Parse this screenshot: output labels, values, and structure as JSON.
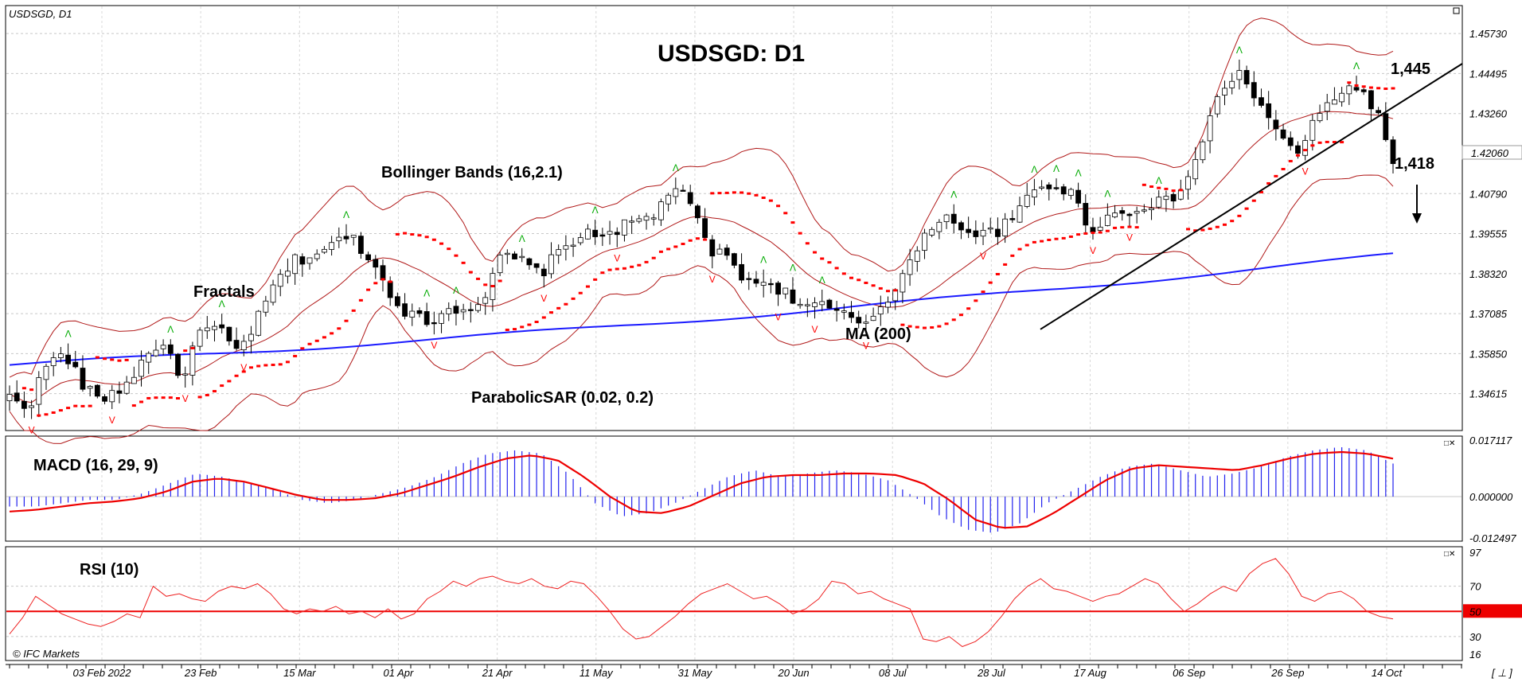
{
  "symbol_label": "USDSGD, D1",
  "title": "USDSGD: D1",
  "copyright": "© IFC Markets",
  "corner_glyph": "[ ⊥ ]",
  "current_price_label": "1.42060",
  "annotations": {
    "bollinger": "Bollinger Bands (16,2.1)",
    "fractals": "Fractals",
    "ma": "MA (200)",
    "parabolic": "ParabolicSAR (0.02, 0.2)",
    "level_high": "1,445",
    "level_low": "1,418"
  },
  "colors": {
    "ma": "#1a1aff",
    "bands": "#b01818",
    "sar": "#ff0000",
    "fractal_up": "#00aa00",
    "fractal_down": "#ff0000",
    "macd_hist": "#2222ee",
    "macd_signal": "#ee0000",
    "rsi": "#ee2222",
    "rsi_mid": "#ee0000"
  },
  "chart_data": [
    {
      "type": "candlestick",
      "panel": "main",
      "y_ticks": [
        "1.45730",
        "1.44495",
        "1.43260",
        "1.40790",
        "1.39555",
        "1.38320",
        "1.37085",
        "1.35850",
        "1.34615"
      ],
      "ylim": [
        1.3355,
        1.4652
      ],
      "x_labels": [
        "03 Feb 2022",
        "23 Feb",
        "15 Mar",
        "01 Apr",
        "21 Apr",
        "11 May",
        "31 May",
        "20 Jun",
        "08 Jul",
        "28 Jul",
        "17 Aug",
        "06 Sep",
        "26 Sep",
        "14 Oct"
      ],
      "close_anchors": [
        1.345,
        1.342,
        1.356,
        1.358,
        1.347,
        1.345,
        1.348,
        1.356,
        1.363,
        1.35,
        1.365,
        1.366,
        1.359,
        1.368,
        1.38,
        1.387,
        1.389,
        1.392,
        1.395,
        1.388,
        1.378,
        1.371,
        1.368,
        1.372,
        1.373,
        1.375,
        1.389,
        1.387,
        1.383,
        1.39,
        1.395,
        1.395,
        1.397,
        1.399,
        1.401,
        1.411,
        1.403,
        1.39,
        1.388,
        1.38,
        1.381,
        1.377,
        1.373,
        1.373,
        1.37,
        1.368,
        1.373,
        1.382,
        1.391,
        1.401,
        1.399,
        1.395,
        1.396,
        1.4,
        1.409,
        1.411,
        1.408,
        1.397,
        1.401,
        1.402,
        1.405,
        1.405,
        1.41,
        1.425,
        1.441,
        1.445,
        1.435,
        1.425,
        1.421,
        1.431,
        1.439,
        1.441,
        1.435,
        1.418
      ],
      "ma200": {
        "name": "MA (200)",
        "start": 1.355,
        "end": 1.389
      },
      "bollinger": {
        "name": "Bollinger Bands (16,2.1)",
        "period": 16,
        "deviation": 2.1
      },
      "parabolic_sar": {
        "name": "ParabolicSAR (0.02, 0.2)",
        "step": 0.02,
        "max": 0.2
      },
      "trendline": {
        "from": 1.366,
        "to": 1.448
      },
      "arrow": "down"
    },
    {
      "type": "macd",
      "panel": "macd",
      "label": "MACD (16, 29, 9)",
      "y_ticks": [
        "0.017117",
        "0.000000",
        "-0.012497"
      ],
      "ylim": [
        -0.0125,
        0.0171
      ],
      "histogram_anchors": [
        -0.003,
        -0.003,
        -0.002,
        -0.001,
        -0.001,
        0.001,
        0.004,
        0.007,
        0.006,
        0.004,
        0.002,
        -0.001,
        -0.002,
        -0.001,
        0.001,
        0.003,
        0.006,
        0.01,
        0.013,
        0.014,
        0.013,
        0.007,
        -0.002,
        -0.006,
        -0.005,
        -0.002,
        0.002,
        0.006,
        0.008,
        0.006,
        0.007,
        0.008,
        0.007,
        0.005,
        0.0,
        -0.006,
        -0.01,
        -0.011,
        -0.008,
        -0.002,
        0.002,
        0.006,
        0.009,
        0.01,
        0.008,
        0.006,
        0.007,
        0.009,
        0.012,
        0.014,
        0.015,
        0.014,
        0.01
      ],
      "signal_anchors": [
        -0.0045,
        -0.004,
        -0.003,
        -0.002,
        -0.0015,
        -0.0005,
        0.0015,
        0.0045,
        0.0055,
        0.0045,
        0.0025,
        0.0005,
        -0.001,
        -0.001,
        -0.0005,
        0.001,
        0.0035,
        0.006,
        0.009,
        0.0115,
        0.0125,
        0.011,
        0.006,
        0.0,
        -0.0045,
        -0.005,
        -0.003,
        0.0005,
        0.004,
        0.006,
        0.0065,
        0.0065,
        0.007,
        0.007,
        0.0065,
        0.004,
        -0.001,
        -0.007,
        -0.0095,
        -0.009,
        -0.005,
        0.0,
        0.005,
        0.0085,
        0.0095,
        0.009,
        0.0085,
        0.008,
        0.0095,
        0.0115,
        0.013,
        0.0135,
        0.013,
        0.0115
      ]
    },
    {
      "type": "line",
      "panel": "rsi",
      "label": "RSI (10)",
      "y_ticks": [
        "97",
        "70",
        "50",
        "30",
        "16"
      ],
      "ylim": [
        16,
        97
      ],
      "level": 50,
      "values": [
        32,
        45,
        62,
        55,
        48,
        44,
        40,
        38,
        42,
        48,
        45,
        70,
        62,
        64,
        60,
        58,
        66,
        70,
        68,
        72,
        64,
        52,
        48,
        52,
        50,
        54,
        48,
        50,
        45,
        52,
        44,
        48,
        60,
        66,
        74,
        70,
        76,
        78,
        74,
        72,
        76,
        70,
        68,
        74,
        72,
        62,
        50,
        36,
        28,
        30,
        38,
        46,
        56,
        64,
        68,
        72,
        66,
        60,
        62,
        56,
        48,
        52,
        60,
        74,
        72,
        64,
        66,
        60,
        56,
        52,
        28,
        26,
        30,
        22,
        26,
        34,
        46,
        60,
        70,
        76,
        68,
        66,
        62,
        58,
        62,
        64,
        70,
        76,
        72,
        60,
        50,
        56,
        64,
        70,
        66,
        80,
        88,
        92,
        80,
        62,
        58,
        64,
        66,
        60,
        50,
        46,
        44
      ]
    }
  ]
}
